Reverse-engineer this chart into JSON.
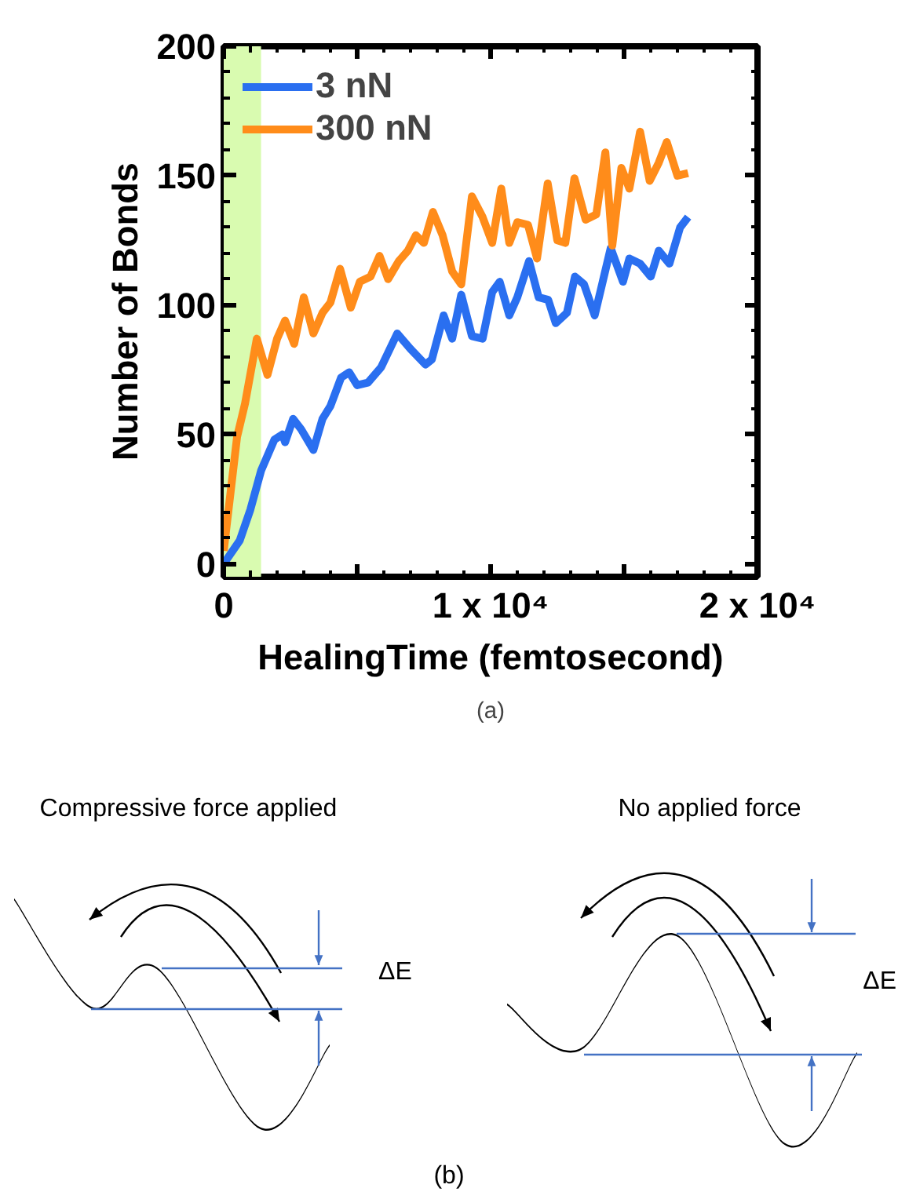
{
  "chart_data": [
    {
      "type": "line",
      "xlabel": "HealingTime (femtosecond)",
      "ylabel": "Number of Bonds",
      "xlim": [
        0,
        20000
      ],
      "ylim": [
        -5,
        200
      ],
      "xticks": [
        0,
        {
          "value": 5000,
          "label": null
        },
        {
          "value": 10000,
          "label": "1 x 10⁴"
        },
        {
          "value": 15000,
          "label": null
        },
        {
          "value": 20000,
          "label": "2 x 10⁴"
        }
      ],
      "yticks": [
        0,
        50,
        100,
        150,
        200
      ],
      "grid": false,
      "legend": "top left",
      "line_style": "solid",
      "marker": "none",
      "bands": [
        {
          "axis": "x",
          "from": 0,
          "to": 1400,
          "color": "#d9fbb0"
        }
      ],
      "annotations": [
        "(a)"
      ],
      "series": [
        {
          "name": "3 nN",
          "color": "#2a6ff0",
          "x": [
            0,
            600,
            1000,
            1400,
            1900,
            2200,
            2300,
            2600,
            2900,
            3360,
            3700,
            4000,
            4400,
            4700,
            5000,
            5400,
            5900,
            6500,
            7000,
            7560,
            7800,
            8240,
            8560,
            8900,
            9300,
            9700,
            10060,
            10340,
            10700,
            11000,
            11440,
            11800,
            12160,
            12440,
            12860,
            13160,
            13500,
            13900,
            14500,
            14960,
            15200,
            15600,
            16000,
            16300,
            16700,
            17100,
            17400
          ],
          "values": [
            0,
            9,
            21,
            36,
            48,
            50,
            47,
            56,
            52,
            44,
            56,
            61,
            72,
            74,
            69,
            70,
            76,
            89,
            83,
            77,
            79,
            96,
            87,
            104,
            88,
            87,
            105,
            109,
            96,
            103,
            117,
            103,
            102,
            93,
            97,
            111,
            108,
            96,
            122,
            109,
            118,
            116,
            111,
            121,
            116,
            130,
            134
          ]
        },
        {
          "name": "300 nN",
          "color": "#ff8c1a",
          "x": [
            0,
            500,
            800,
            1240,
            1640,
            2000,
            2300,
            2640,
            3000,
            3360,
            3700,
            4000,
            4360,
            4760,
            5100,
            5500,
            5840,
            6160,
            6560,
            6900,
            7200,
            7500,
            7840,
            8200,
            8560,
            8900,
            9300,
            9700,
            10060,
            10400,
            10700,
            11000,
            11400,
            11740,
            12140,
            12500,
            12800,
            13140,
            13560,
            13960,
            14300,
            14560,
            14900,
            15200,
            15600,
            15960,
            16300,
            16600,
            17000,
            17400
          ],
          "values": [
            5,
            49,
            62,
            87,
            73,
            87,
            94,
            85,
            103,
            89,
            97,
            101,
            114,
            99,
            109,
            111,
            119,
            110,
            117,
            121,
            127,
            124,
            136,
            127,
            113,
            108,
            142,
            134,
            124,
            145,
            124,
            132,
            131,
            118,
            147,
            125,
            124,
            149,
            133,
            135,
            159,
            123,
            153,
            145,
            167,
            148,
            155,
            163,
            150,
            151
          ]
        }
      ]
    },
    {
      "type": "other",
      "annotations": [
        "Compressive force applied",
        "No applied force",
        "ΔE",
        "ΔE",
        "(b)"
      ]
    }
  ]
}
